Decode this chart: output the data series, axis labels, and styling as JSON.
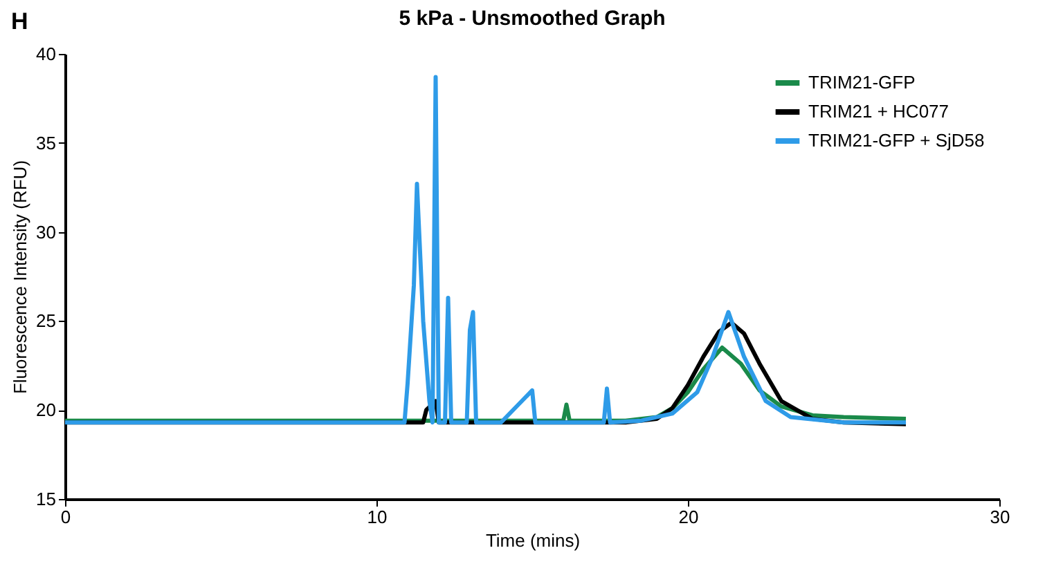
{
  "chart_data": {
    "type": "line",
    "title": "5 kPa - Unsmoothed Graph",
    "xlabel": "Time (mins)",
    "ylabel": "Fluorescence Intensity (RFU)",
    "annotations": [
      "H"
    ],
    "xlim": [
      0,
      30
    ],
    "xticks": [
      0,
      10,
      20,
      30
    ],
    "ylim": [
      15,
      40
    ],
    "yticks": [
      15,
      20,
      25,
      30,
      35,
      40
    ],
    "grid": false,
    "legend": "top right",
    "marker": "none",
    "line_style": "solid",
    "series": [
      {
        "name": "TRIM21-GFP",
        "color": "#1a8a4a",
        "x": [
          0,
          5,
          10,
          15,
          16,
          16.1,
          16.2,
          18,
          19,
          19.5,
          20,
          20.5,
          21.1,
          21.7,
          22.3,
          23,
          24,
          25,
          27
        ],
        "values": [
          19.4,
          19.4,
          19.4,
          19.4,
          19.4,
          20.3,
          19.4,
          19.4,
          19.6,
          20.1,
          21,
          22.3,
          23.5,
          22.6,
          21.1,
          20.2,
          19.7,
          19.6,
          19.5
        ]
      },
      {
        "name": "TRIM21 + HC077",
        "color": "#000000",
        "x": [
          0,
          5,
          11,
          11.5,
          11.6,
          11.9,
          12.0,
          15,
          18,
          19,
          19.5,
          20,
          20.5,
          21,
          21.4,
          21.8,
          22.3,
          23,
          24,
          25,
          27
        ],
        "values": [
          19.3,
          19.3,
          19.3,
          19.3,
          20.0,
          20.5,
          19.3,
          19.3,
          19.3,
          19.5,
          20.1,
          21.4,
          23,
          24.4,
          24.9,
          24.3,
          22.6,
          20.5,
          19.5,
          19.3,
          19.2
        ]
      },
      {
        "name": "TRIM21-GFP + SjD58",
        "color": "#2e9be8",
        "x": [
          0,
          5,
          10.9,
          11.0,
          11.2,
          11.3,
          11.5,
          11.7,
          11.8,
          11.9,
          12.0,
          12.2,
          12.3,
          12.4,
          12.9,
          13.0,
          13.1,
          13.2,
          14,
          15.0,
          15.1,
          16,
          17.3,
          17.4,
          17.5,
          18.5,
          19.5,
          20.3,
          20.8,
          21.3,
          21.8,
          22.5,
          23.3,
          25,
          27
        ],
        "values": [
          19.3,
          19.3,
          19.3,
          21.5,
          27,
          32.7,
          25,
          20.5,
          19.3,
          38.7,
          19.3,
          19.3,
          26.3,
          19.3,
          19.3,
          24.5,
          25.5,
          19.3,
          19.3,
          21.1,
          19.3,
          19.3,
          19.3,
          21.2,
          19.3,
          19.4,
          19.8,
          21,
          23,
          25.5,
          23,
          20.5,
          19.6,
          19.3,
          19.3
        ]
      }
    ]
  }
}
